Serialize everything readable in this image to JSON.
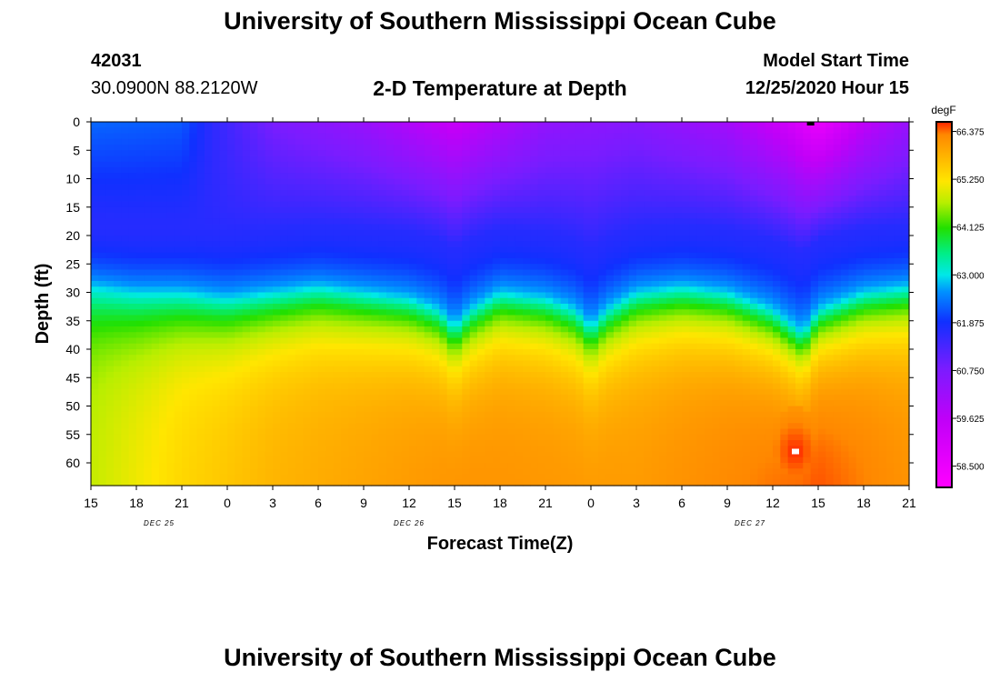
{
  "header": {
    "title": "University of Southern Mississippi Ocean Cube",
    "station_id": "42031",
    "station_coords": "30.0900N 88.2120W",
    "model_start_label": "Model Start Time",
    "model_start_value": "12/25/2020 Hour 15"
  },
  "footer": {
    "title": "University of Southern Mississippi Ocean Cube"
  },
  "chart_data": {
    "type": "heatmap",
    "title": "2-D Temperature at Depth",
    "xlabel": "Forecast Time(Z)",
    "ylabel": "Depth (ft)",
    "x_range_hours": [
      0,
      54
    ],
    "y_range_ft": [
      0,
      64
    ],
    "x_ticks": [
      {
        "hour": 0,
        "label": "15"
      },
      {
        "hour": 3,
        "label": "18"
      },
      {
        "hour": 6,
        "label": "21"
      },
      {
        "hour": 9,
        "label": "0"
      },
      {
        "hour": 12,
        "label": "3"
      },
      {
        "hour": 15,
        "label": "6"
      },
      {
        "hour": 18,
        "label": "9"
      },
      {
        "hour": 21,
        "label": "12"
      },
      {
        "hour": 24,
        "label": "15"
      },
      {
        "hour": 27,
        "label": "18"
      },
      {
        "hour": 30,
        "label": "21"
      },
      {
        "hour": 33,
        "label": "0"
      },
      {
        "hour": 36,
        "label": "3"
      },
      {
        "hour": 39,
        "label": "6"
      },
      {
        "hour": 42,
        "label": "9"
      },
      {
        "hour": 45,
        "label": "12"
      },
      {
        "hour": 48,
        "label": "15"
      },
      {
        "hour": 51,
        "label": "18"
      },
      {
        "hour": 54,
        "label": "21"
      }
    ],
    "date_labels": [
      {
        "hour": 4.5,
        "label": "DEC 25"
      },
      {
        "hour": 21,
        "label": "DEC 26"
      },
      {
        "hour": 43.5,
        "label": "DEC 27"
      }
    ],
    "y_ticks": [
      0,
      5,
      10,
      15,
      20,
      25,
      30,
      35,
      40,
      45,
      50,
      55,
      60
    ],
    "colorbar": {
      "unit": "degF",
      "range": [
        58.0,
        66.6
      ],
      "ticks": [
        "66.375",
        "65.250",
        "64.125",
        "63.000",
        "61.875",
        "60.750",
        "59.625",
        "58.500"
      ],
      "tick_values": [
        66.375,
        65.25,
        64.125,
        63.0,
        61.875,
        60.75,
        59.625,
        58.5
      ],
      "stops": [
        {
          "value": 58.0,
          "color": "#ff00ff"
        },
        {
          "value": 59.6,
          "color": "#c000f8"
        },
        {
          "value": 60.8,
          "color": "#7a1cff"
        },
        {
          "value": 61.9,
          "color": "#1030ff"
        },
        {
          "value": 62.6,
          "color": "#0090ff"
        },
        {
          "value": 63.0,
          "color": "#00e8e8"
        },
        {
          "value": 63.5,
          "color": "#00ee88"
        },
        {
          "value": 64.1,
          "color": "#22e000"
        },
        {
          "value": 64.7,
          "color": "#b8ee00"
        },
        {
          "value": 65.2,
          "color": "#ffe600"
        },
        {
          "value": 65.8,
          "color": "#ffb300"
        },
        {
          "value": 66.3,
          "color": "#ff8800"
        },
        {
          "value": 66.6,
          "color": "#ff2200"
        }
      ]
    },
    "thermocline_depth_ft": [
      {
        "hour": 0,
        "depth": 29
      },
      {
        "hour": 3,
        "depth": 30
      },
      {
        "hour": 6,
        "depth": 30
      },
      {
        "hour": 9,
        "depth": 31
      },
      {
        "hour": 12,
        "depth": 30
      },
      {
        "hour": 15,
        "depth": 29
      },
      {
        "hour": 18,
        "depth": 30
      },
      {
        "hour": 21,
        "depth": 31
      },
      {
        "hour": 23,
        "depth": 33
      },
      {
        "hour": 24,
        "depth": 36
      },
      {
        "hour": 25,
        "depth": 33
      },
      {
        "hour": 27,
        "depth": 30
      },
      {
        "hour": 30,
        "depth": 31
      },
      {
        "hour": 32,
        "depth": 33
      },
      {
        "hour": 33,
        "depth": 36
      },
      {
        "hour": 34,
        "depth": 33
      },
      {
        "hour": 36,
        "depth": 30
      },
      {
        "hour": 39,
        "depth": 29
      },
      {
        "hour": 42,
        "depth": 30
      },
      {
        "hour": 45,
        "depth": 33
      },
      {
        "hour": 47,
        "depth": 37
      },
      {
        "hour": 48,
        "depth": 33
      },
      {
        "hour": 51,
        "depth": 30
      },
      {
        "hour": 54,
        "depth": 29
      }
    ],
    "surface_temperature_degF": [
      {
        "hour": 0,
        "value": 62.3
      },
      {
        "hour": 6,
        "value": 62.2
      },
      {
        "hour": 8,
        "value": 61.6
      },
      {
        "hour": 12,
        "value": 60.8
      },
      {
        "hour": 18,
        "value": 60.3
      },
      {
        "hour": 24,
        "value": 59.4
      },
      {
        "hour": 30,
        "value": 60.4
      },
      {
        "hour": 36,
        "value": 60.6
      },
      {
        "hour": 42,
        "value": 60.1
      },
      {
        "hour": 46,
        "value": 59.2
      },
      {
        "hour": 48,
        "value": 58.5
      },
      {
        "hour": 51,
        "value": 59.6
      },
      {
        "hour": 54,
        "value": 60.3
      }
    ],
    "bottom_temperature_degF": [
      {
        "hour": 0,
        "value": 64.8
      },
      {
        "hour": 6,
        "value": 65.4
      },
      {
        "hour": 12,
        "value": 65.8
      },
      {
        "hour": 24,
        "value": 66.2
      },
      {
        "hour": 36,
        "value": 66.1
      },
      {
        "hour": 48,
        "value": 66.5
      },
      {
        "hour": 54,
        "value": 66.2
      }
    ],
    "warm_core": {
      "hour": 46.5,
      "depth": 58,
      "value": 66.6
    },
    "markers": [
      {
        "hour": 46.5,
        "depth": 58,
        "color": "#ffffff"
      },
      {
        "hour": 47.5,
        "depth": 0,
        "color": "#000000"
      }
    ]
  }
}
